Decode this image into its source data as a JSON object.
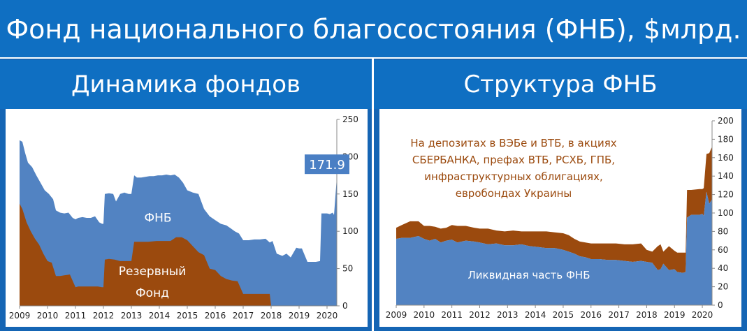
{
  "title": "Фонд национального благосостояния (ФНБ), $млрд.",
  "left_panel": {
    "title": "Динамика фондов"
  },
  "right_panel": {
    "title": "Структура ФНБ"
  },
  "colors": {
    "blue_area": "#5283c2",
    "brown_area": "#9b4a0e",
    "header_bg": "#0f6fc2",
    "annotation_text": "#9b4a0e"
  },
  "chart_data": [
    {
      "type": "area",
      "x_ticks": [
        "2009",
        "2010",
        "2011",
        "2012",
        "2013",
        "2014",
        "2015",
        "2016",
        "2017",
        "2018",
        "2019",
        "2020"
      ],
      "y_ticks": [
        "0",
        "50",
        "100",
        "150",
        "200",
        "250"
      ],
      "ylim": [
        0,
        250
      ],
      "xlim": [
        2009,
        2020.35
      ],
      "y_axis_side": "right",
      "series": [
        {
          "name": "ФНБ",
          "color": "#5283c2",
          "x": [
            2009.0,
            2009.1,
            2009.2,
            2009.3,
            2009.45,
            2009.6,
            2009.75,
            2009.9,
            2010.05,
            2010.2,
            2010.3,
            2010.45,
            2010.6,
            2010.75,
            2010.9,
            2011.0,
            2011.1,
            2011.25,
            2011.4,
            2011.55,
            2011.7,
            2011.85,
            2011.95,
            2012.0,
            2012.05,
            2012.2,
            2012.35,
            2012.45,
            2012.6,
            2012.75,
            2012.9,
            2013.0,
            2013.1,
            2013.2,
            2013.35,
            2013.5,
            2013.65,
            2013.8,
            2013.95,
            2014.1,
            2014.25,
            2014.4,
            2014.55,
            2014.7,
            2014.85,
            2015.0,
            2015.2,
            2015.4,
            2015.6,
            2015.8,
            2016.0,
            2016.2,
            2016.4,
            2016.55,
            2016.7,
            2016.85,
            2017.0,
            2017.2,
            2017.4,
            2017.6,
            2017.8,
            2017.95,
            2018.05,
            2018.2,
            2018.4,
            2018.55,
            2018.7,
            2018.9,
            2019.0,
            2019.1,
            2019.3,
            2019.6,
            2019.75,
            2019.8,
            2019.9,
            2020.0,
            2020.1,
            2020.2,
            2020.25,
            2020.35
          ],
          "values": [
            222,
            220,
            205,
            192,
            186,
            175,
            165,
            155,
            150,
            143,
            128,
            125,
            124,
            125,
            118,
            116,
            118,
            119,
            118,
            118,
            120,
            112,
            110,
            110,
            150,
            151,
            150,
            140,
            150,
            152,
            150,
            150,
            175,
            172,
            172,
            173,
            174,
            174,
            175,
            175,
            176,
            175,
            176,
            172,
            165,
            155,
            152,
            150,
            130,
            120,
            115,
            110,
            108,
            104,
            100,
            97,
            88,
            88,
            89,
            89,
            90,
            85,
            87,
            70,
            67,
            70,
            65,
            78,
            77,
            77,
            59,
            59,
            60,
            124,
            124,
            124,
            123,
            125,
            122,
            172
          ]
        },
        {
          "name": "Резервный Фонд",
          "color": "#9b4a0e",
          "x": [
            2009.0,
            2009.1,
            2009.25,
            2009.4,
            2009.55,
            2009.7,
            2009.85,
            2010.0,
            2010.15,
            2010.3,
            2010.45,
            2010.6,
            2010.8,
            2011.0,
            2011.1,
            2011.25,
            2011.4,
            2011.6,
            2011.8,
            2011.95,
            2012.0,
            2012.05,
            2012.2,
            2012.4,
            2012.6,
            2012.8,
            2013.0,
            2013.1,
            2013.3,
            2013.6,
            2013.9,
            2014.2,
            2014.4,
            2014.6,
            2014.8,
            2015.0,
            2015.2,
            2015.4,
            2015.6,
            2015.8,
            2016.0,
            2016.2,
            2016.4,
            2016.6,
            2016.8,
            2017.0,
            2017.2,
            2017.5,
            2017.8,
            2017.95,
            2018.0
          ],
          "values": [
            137,
            130,
            112,
            100,
            90,
            82,
            70,
            60,
            58,
            40,
            40,
            41,
            42,
            25,
            26,
            26,
            26,
            26,
            26,
            25,
            25,
            62,
            63,
            62,
            60,
            60,
            60,
            86,
            86,
            86,
            87,
            87,
            87,
            92,
            92,
            88,
            80,
            72,
            68,
            50,
            48,
            40,
            36,
            34,
            33,
            16,
            16,
            16,
            16,
            16,
            0
          ]
        }
      ],
      "annotations": [
        {
          "text": "ФНБ"
        },
        {
          "text": "Резервный"
        },
        {
          "text": "Фонд"
        },
        {
          "text": "171.9",
          "boxed": true
        }
      ]
    },
    {
      "type": "area",
      "x_ticks": [
        "2009",
        "2010",
        "2011",
        "2012",
        "2013",
        "2014",
        "2015",
        "2016",
        "2017",
        "2018",
        "2019",
        "2020"
      ],
      "y_ticks": [
        "0",
        "20",
        "40",
        "60",
        "80",
        "100",
        "120",
        "140",
        "160",
        "180",
        "200"
      ],
      "ylim": [
        0,
        200
      ],
      "xlim": [
        2009,
        2020.35
      ],
      "y_axis_side": "right",
      "stacked": true,
      "series": [
        {
          "name": "Ликвидная часть ФНБ",
          "color": "#5283c2",
          "x": [
            2009.0,
            2009.2,
            2009.5,
            2009.8,
            2010.0,
            2010.2,
            2010.4,
            2010.6,
            2010.8,
            2011.0,
            2011.2,
            2011.5,
            2011.8,
            2012.0,
            2012.3,
            2012.6,
            2012.9,
            2013.2,
            2013.5,
            2013.8,
            2014.1,
            2014.4,
            2014.7,
            2015.0,
            2015.2,
            2015.4,
            2015.6,
            2015.8,
            2016.0,
            2016.3,
            2016.6,
            2016.9,
            2017.2,
            2017.5,
            2017.8,
            2018.0,
            2018.2,
            2018.4,
            2018.5,
            2018.6,
            2018.8,
            2019.0,
            2019.1,
            2019.3,
            2019.4,
            2019.45,
            2019.6,
            2019.9,
            2020.0,
            2020.05,
            2020.15,
            2020.25,
            2020.35
          ],
          "values": [
            72,
            73,
            73,
            75,
            72,
            70,
            72,
            68,
            70,
            71,
            68,
            70,
            69,
            68,
            66,
            67,
            65,
            65,
            66,
            64,
            63,
            62,
            62,
            60,
            58,
            56,
            53,
            52,
            50,
            50,
            49,
            49,
            48,
            47,
            48,
            47,
            46,
            38,
            39,
            45,
            38,
            39,
            36,
            35,
            36,
            95,
            98,
            98,
            99,
            97,
            123,
            110,
            115
          ]
        },
        {
          "name": "На депозитах в ВЭБе и ВТБ, в акциях СБЕРБАНКА, префах ВТБ, РСХБ, ГПБ, инфраструктурных облигациях, евробондах Украины",
          "color": "#9b4a0e",
          "x": [
            2009.0,
            2009.2,
            2009.5,
            2009.8,
            2010.0,
            2010.2,
            2010.4,
            2010.6,
            2010.8,
            2011.0,
            2011.2,
            2011.5,
            2011.8,
            2012.0,
            2012.3,
            2012.6,
            2012.9,
            2013.2,
            2013.5,
            2013.8,
            2014.1,
            2014.4,
            2014.7,
            2015.0,
            2015.2,
            2015.4,
            2015.6,
            2015.8,
            2016.0,
            2016.3,
            2016.6,
            2016.9,
            2017.2,
            2017.5,
            2017.8,
            2018.0,
            2018.2,
            2018.4,
            2018.5,
            2018.6,
            2018.8,
            2019.0,
            2019.1,
            2019.3,
            2019.4,
            2019.45,
            2019.6,
            2019.9,
            2020.0,
            2020.05,
            2020.15,
            2020.25,
            2020.35
          ],
          "values": [
            12,
            14,
            18,
            16,
            14,
            16,
            13,
            15,
            14,
            16,
            18,
            16,
            15,
            15,
            17,
            14,
            15,
            16,
            14,
            16,
            17,
            18,
            17,
            18,
            18,
            16,
            16,
            16,
            17,
            17,
            18,
            18,
            18,
            19,
            19,
            13,
            12,
            26,
            27,
            13,
            26,
            20,
            21,
            22,
            21,
            30,
            27,
            28,
            27,
            30,
            41,
            55,
            57
          ]
        }
      ],
      "annotations": [
        {
          "lines": [
            "На депозитах в ВЭБе и ВТБ, в акциях",
            "СБЕРБАНКА, префах ВТБ, РСХБ, ГПБ,",
            "инфраструктурных облигациях,",
            "евробондах Украины"
          ]
        },
        {
          "text": "Ликвидная часть ФНБ"
        }
      ]
    }
  ]
}
